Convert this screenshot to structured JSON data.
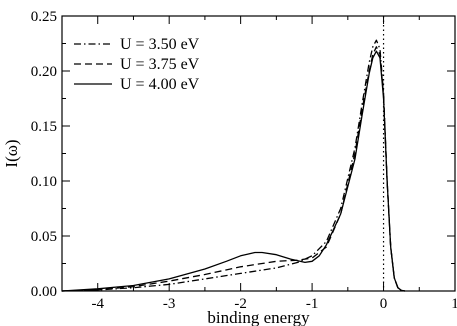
{
  "chart_data": {
    "type": "line",
    "title": "",
    "xlabel": "binding energy",
    "ylabel": "I(ω)",
    "xlim": [
      -4.5,
      1
    ],
    "ylim": [
      0,
      0.25
    ],
    "x_ticks": [
      -4,
      -3,
      -2,
      -1,
      0,
      1
    ],
    "x_tick_labels": [
      "-4",
      "-3",
      "-2",
      "-1",
      "0",
      "1"
    ],
    "y_ticks": [
      0,
      0.05,
      0.1,
      0.15,
      0.2,
      0.25
    ],
    "y_tick_labels": [
      "0.00",
      "0.05",
      "0.10",
      "0.15",
      "0.20",
      "0.25"
    ],
    "grid": false,
    "legend_position": "top-left",
    "reference_line": {
      "x": 0,
      "style": "dotted"
    },
    "series": [
      {
        "name": "U = 3.50 eV",
        "style": "dash-dot",
        "x": [
          -4.5,
          -4.0,
          -3.5,
          -3.0,
          -2.5,
          -2.0,
          -1.5,
          -1.2,
          -1.0,
          -0.8,
          -0.6,
          -0.4,
          -0.3,
          -0.2,
          -0.15,
          -0.1,
          -0.05,
          0.0,
          0.05,
          0.1,
          0.15,
          0.2,
          0.25,
          0.3
        ],
        "y": [
          0.0,
          0.001,
          0.003,
          0.006,
          0.011,
          0.016,
          0.021,
          0.026,
          0.032,
          0.045,
          0.075,
          0.13,
          0.17,
          0.208,
          0.222,
          0.228,
          0.22,
          0.18,
          0.1,
          0.04,
          0.012,
          0.003,
          0.0005,
          0.0
        ]
      },
      {
        "name": "U = 3.75 eV",
        "style": "dashed",
        "x": [
          -4.5,
          -4.0,
          -3.5,
          -3.0,
          -2.5,
          -2.0,
          -1.5,
          -1.2,
          -1.0,
          -0.8,
          -0.6,
          -0.4,
          -0.3,
          -0.2,
          -0.15,
          -0.1,
          -0.05,
          0.0,
          0.05,
          0.1,
          0.15,
          0.2,
          0.25,
          0.3
        ],
        "y": [
          0.0,
          0.001,
          0.004,
          0.009,
          0.015,
          0.022,
          0.027,
          0.028,
          0.03,
          0.04,
          0.07,
          0.125,
          0.165,
          0.2,
          0.215,
          0.222,
          0.215,
          0.178,
          0.1,
          0.04,
          0.012,
          0.003,
          0.0005,
          0.0
        ]
      },
      {
        "name": "U = 4.00 eV",
        "style": "solid",
        "x": [
          -4.5,
          -4.0,
          -3.5,
          -3.0,
          -2.5,
          -2.2,
          -2.0,
          -1.8,
          -1.7,
          -1.5,
          -1.3,
          -1.1,
          -1.0,
          -0.9,
          -0.8,
          -0.6,
          -0.4,
          -0.3,
          -0.2,
          -0.15,
          -0.1,
          -0.05,
          0.0,
          0.05,
          0.1,
          0.15,
          0.2,
          0.25,
          0.3
        ],
        "y": [
          0.0,
          0.002,
          0.005,
          0.011,
          0.02,
          0.027,
          0.032,
          0.035,
          0.035,
          0.033,
          0.029,
          0.026,
          0.027,
          0.032,
          0.042,
          0.07,
          0.12,
          0.16,
          0.198,
          0.212,
          0.218,
          0.212,
          0.175,
          0.1,
          0.04,
          0.012,
          0.003,
          0.0005,
          0.0
        ]
      }
    ]
  }
}
